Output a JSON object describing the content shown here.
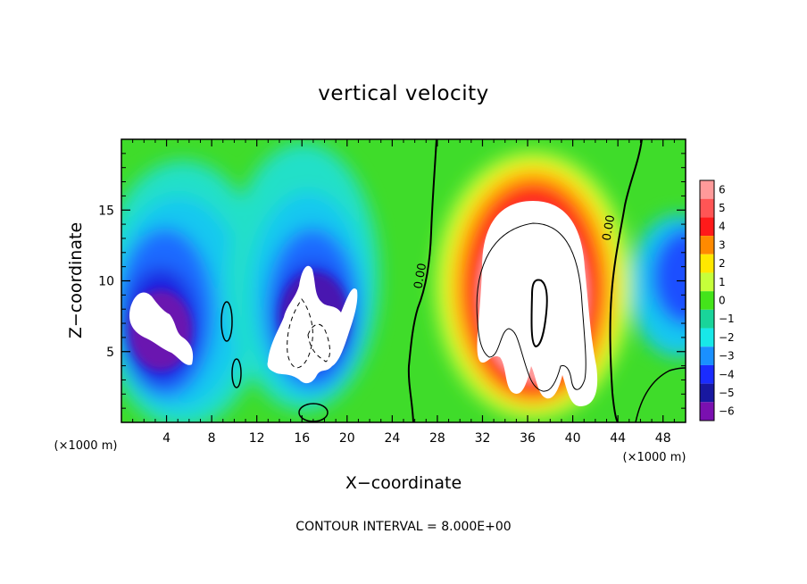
{
  "chart_data": {
    "type": "heatmap",
    "title": "vertical velocity",
    "xlabel": "X−coordinate",
    "ylabel": "Z−coordinate",
    "x_unit": "(×1000 m)",
    "y_unit": "(×1000 m)",
    "xlim": [
      0,
      50
    ],
    "ylim": [
      0,
      20
    ],
    "x_ticks": [
      4,
      8,
      12,
      16,
      20,
      24,
      28,
      32,
      36,
      40,
      44,
      48
    ],
    "x_tick_labels": [
      "4",
      "8",
      "12",
      "16",
      "20",
      "24",
      "28",
      "32",
      "36",
      "40",
      "44",
      "48"
    ],
    "y_ticks": [
      5,
      10,
      15
    ],
    "y_tick_labels": [
      "5",
      "10",
      "15"
    ],
    "colorbar": {
      "levels": [
        6,
        5,
        4,
        3,
        2,
        1,
        0,
        -1,
        -2,
        -3,
        -4,
        -5,
        -6
      ],
      "labels": [
        "6",
        "5",
        "4",
        "3",
        "2",
        "1",
        "0",
        "−1",
        "−2",
        "−3",
        "−4",
        "−5",
        "−6"
      ],
      "colors": [
        "#ff9a9a",
        "#ff5555",
        "#ff1a1a",
        "#ff8a00",
        "#ffe800",
        "#c6ff3a",
        "#44e41a",
        "#19d49a",
        "#18e8e8",
        "#1a90ff",
        "#1a2cff",
        "#1818a0",
        "#7a10b0"
      ]
    },
    "contour_labels": [
      {
        "text": "0.00",
        "x": 26.8,
        "y": 10.3
      },
      {
        "text": "0.00",
        "x": 43.5,
        "y": 13.7
      }
    ],
    "contour_interval_note": "CONTOUR INTERVAL = 8.000E+00",
    "features": [
      {
        "kind": "updraft",
        "x": 36,
        "z": 10,
        "w_max": 6,
        "note": "strong positive core (white saturated) centered ~x=36, z=10"
      },
      {
        "kind": "downdraft",
        "x": 5,
        "z": 7,
        "w_min": -6,
        "note": "strong negative core near x=3–7"
      },
      {
        "kind": "downdraft",
        "x": 17,
        "z": 7,
        "w_min": -6,
        "note": "strong negative core near x=14–20"
      }
    ]
  }
}
